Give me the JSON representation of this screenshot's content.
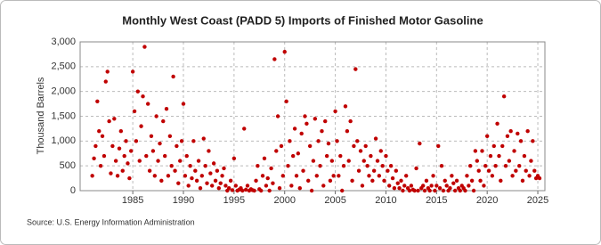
{
  "chart_data": {
    "type": "scatter",
    "title": "Monthly West Coast (PADD 5) Imports of Finished Motor Gasoline",
    "y_label": "Thousand Barrels",
    "source": "Source: U.S. Energy Information Administration",
    "color": "#c00000",
    "grid": true,
    "xlim": [
      1979.8,
      2025.7
    ],
    "xticks": [
      1985,
      1990,
      1995,
      2000,
      2005,
      2010,
      2015,
      2020,
      2025
    ],
    "ylim": [
      0,
      3000
    ],
    "yticks": [
      0,
      500,
      {
        "value": 1000,
        "label": "1,000"
      },
      {
        "value": 1500,
        "label": "1,500"
      },
      {
        "value": 2000,
        "label": "2,000"
      },
      {
        "value": 2500,
        "label": "2,500"
      },
      {
        "value": 3000,
        "label": "3,000"
      }
    ],
    "x": [
      1981,
      1981.17,
      1981.33,
      1981.5,
      1981.67,
      1981.83,
      1982,
      1982.17,
      1982.33,
      1982.5,
      1982.67,
      1982.83,
      1983,
      1983.17,
      1983.33,
      1983.5,
      1983.67,
      1983.83,
      1984,
      1984.17,
      1984.33,
      1984.5,
      1984.67,
      1984.83,
      1985,
      1985.17,
      1985.33,
      1985.5,
      1985.67,
      1985.83,
      1986,
      1986.17,
      1986.33,
      1986.5,
      1986.67,
      1986.83,
      1987,
      1987.17,
      1987.33,
      1987.5,
      1987.67,
      1987.83,
      1988,
      1988.17,
      1988.33,
      1988.5,
      1988.67,
      1988.83,
      1989,
      1989.17,
      1989.33,
      1989.5,
      1989.67,
      1989.83,
      1990,
      1990.17,
      1990.33,
      1990.5,
      1990.67,
      1990.83,
      1991,
      1991.17,
      1991.33,
      1991.5,
      1991.67,
      1991.83,
      1992,
      1992.17,
      1992.33,
      1992.5,
      1992.67,
      1992.83,
      1993,
      1993.17,
      1993.33,
      1993.5,
      1993.67,
      1993.83,
      1994,
      1994.17,
      1994.33,
      1994.5,
      1994.67,
      1994.83,
      1995,
      1995.17,
      1995.33,
      1995.5,
      1995.67,
      1995.83,
      1996,
      1996.17,
      1996.33,
      1996.5,
      1996.67,
      1996.83,
      1997,
      1997.17,
      1997.33,
      1997.5,
      1997.67,
      1997.83,
      1998,
      1998.17,
      1998.33,
      1998.5,
      1998.67,
      1998.83,
      1999,
      1999.17,
      1999.33,
      1999.5,
      1999.67,
      1999.83,
      2000,
      2000.17,
      2000.33,
      2000.5,
      2000.67,
      2000.83,
      2001,
      2001.17,
      2001.33,
      2001.5,
      2001.67,
      2001.83,
      2002,
      2002.17,
      2002.33,
      2002.5,
      2002.67,
      2002.83,
      2003,
      2003.17,
      2003.33,
      2003.5,
      2003.67,
      2003.83,
      2004,
      2004.17,
      2004.33,
      2004.5,
      2004.67,
      2004.83,
      2005,
      2005.17,
      2005.33,
      2005.5,
      2005.67,
      2005.83,
      2006,
      2006.17,
      2006.33,
      2006.5,
      2006.67,
      2006.83,
      2007,
      2007.17,
      2007.33,
      2007.5,
      2007.67,
      2007.83,
      2008,
      2008.17,
      2008.33,
      2008.5,
      2008.67,
      2008.83,
      2009,
      2009.17,
      2009.33,
      2009.5,
      2009.67,
      2009.83,
      2010,
      2010.17,
      2010.33,
      2010.5,
      2010.67,
      2010.83,
      2011,
      2011.17,
      2011.33,
      2011.5,
      2011.67,
      2011.83,
      2012,
      2012.17,
      2012.33,
      2012.5,
      2012.67,
      2012.83,
      2013,
      2013.17,
      2013.33,
      2013.5,
      2013.67,
      2013.83,
      2014,
      2014.17,
      2014.33,
      2014.5,
      2014.67,
      2014.83,
      2015,
      2015.17,
      2015.33,
      2015.5,
      2015.67,
      2015.83,
      2016,
      2016.17,
      2016.33,
      2016.5,
      2016.67,
      2016.83,
      2017,
      2017.17,
      2017.33,
      2017.5,
      2017.67,
      2017.83,
      2018,
      2018.17,
      2018.33,
      2018.5,
      2018.67,
      2018.83,
      2019,
      2019.17,
      2019.33,
      2019.5,
      2019.67,
      2019.83,
      2020,
      2020.17,
      2020.33,
      2020.5,
      2020.67,
      2020.83,
      2021,
      2021.17,
      2021.33,
      2021.5,
      2021.67,
      2021.83,
      2022,
      2022.17,
      2022.33,
      2022.5,
      2022.67,
      2022.83,
      2023,
      2023.17,
      2023.33,
      2023.5,
      2023.67,
      2023.83,
      2024,
      2024.17,
      2024.33,
      2024.5,
      2024.67,
      2024.83,
      2025,
      2025.17
    ],
    "values": [
      300,
      650,
      900,
      1800,
      1200,
      500,
      1100,
      700,
      2200,
      2400,
      1400,
      350,
      900,
      1450,
      600,
      300,
      850,
      1200,
      400,
      700,
      1000,
      550,
      250,
      800,
      2400,
      1600,
      1000,
      2000,
      600,
      1300,
      1900,
      2900,
      700,
      1750,
      400,
      1100,
      800,
      300,
      1500,
      600,
      950,
      200,
      1400,
      700,
      1650,
      300,
      1100,
      500,
      2300,
      400,
      900,
      150,
      600,
      1000,
      1750,
      300,
      700,
      100,
      500,
      250,
      1000,
      400,
      200,
      600,
      50,
      300,
      1050,
      500,
      150,
      800,
      350,
      100,
      550,
      200,
      400,
      50,
      150,
      300,
      450,
      100,
      0,
      50,
      200,
      10,
      650,
      100,
      0,
      20,
      50,
      0,
      1250,
      20,
      100,
      0,
      30,
      10,
      0,
      200,
      500,
      30,
      0,
      300,
      650,
      100,
      250,
      0,
      450,
      150,
      2650,
      800,
      1500,
      50,
      900,
      300,
      2800,
      1800,
      500,
      1000,
      100,
      700,
      1250,
      300,
      750,
      50,
      1150,
      400,
      1500,
      1350,
      200,
      900,
      0,
      600,
      1450,
      300,
      1000,
      500,
      1200,
      100,
      1400,
      700,
      950,
      200,
      600,
      300,
      1600,
      1000,
      300,
      700,
      0,
      500,
      1700,
      1200,
      600,
      1400,
      200,
      900,
      2450,
      1000,
      400,
      800,
      100,
      600,
      900,
      500,
      300,
      700,
      200,
      400,
      1050,
      600,
      300,
      800,
      500,
      200,
      700,
      400,
      100,
      500,
      250,
      50,
      400,
      150,
      50,
      200,
      0,
      100,
      300,
      50,
      0,
      100,
      20,
      0,
      450,
      0,
      950,
      50,
      100,
      0,
      200,
      50,
      0,
      100,
      300,
      0,
      100,
      900,
      50,
      500,
      0,
      200,
      100,
      0,
      50,
      300,
      150,
      0,
      200,
      50,
      0,
      100,
      50,
      0,
      300,
      100,
      500,
      200,
      0,
      800,
      600,
      400,
      200,
      800,
      100,
      500,
      1100,
      400,
      700,
      300,
      900,
      500,
      1350,
      700,
      200,
      900,
      1900,
      500,
      1100,
      600,
      1200,
      300,
      800,
      400,
      1150,
      500,
      1000,
      200,
      700,
      400,
      1200,
      300,
      600,
      1000,
      400,
      250,
      300,
      250
    ]
  }
}
